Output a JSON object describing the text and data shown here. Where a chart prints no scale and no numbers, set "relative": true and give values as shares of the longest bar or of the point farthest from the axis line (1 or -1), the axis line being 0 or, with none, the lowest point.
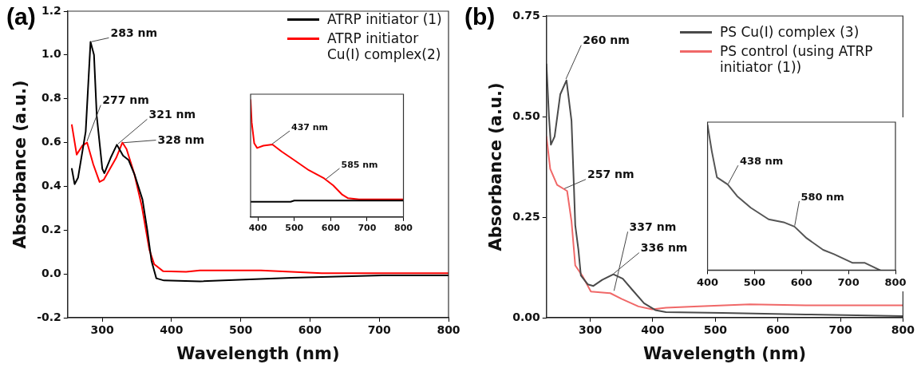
{
  "chart_data": [
    {
      "type": "line",
      "title": "(a)",
      "xlabel": "Wavelength (nm)",
      "ylabel": "Absorbance (a.u.)",
      "xlim": [
        250,
        800
      ],
      "xticks": [
        300,
        400,
        500,
        600,
        700,
        800
      ],
      "ylim": [
        -0.2,
        1.2
      ],
      "yticks": [
        {
          "value": -0.2,
          "label": "-0.2"
        },
        {
          "value": 0,
          "label": "0.0"
        },
        {
          "value": 0.2,
          "label": "0.2"
        },
        {
          "value": 0.4,
          "label": "0.4"
        },
        {
          "value": 0.6,
          "label": "0.6"
        },
        {
          "value": 0.8,
          "label": "0.8"
        },
        {
          "value": 1,
          "label": "1.0"
        },
        {
          "value": 1.2,
          "label": "1.2"
        }
      ],
      "grid": false,
      "legend": "top right",
      "marker": "none",
      "line_style": "solid",
      "series": [
        {
          "name": "ATRP initiator (1)",
          "color": "#000000",
          "x": [
            256,
            260,
            265,
            276,
            283,
            288,
            292,
            300,
            303,
            312,
            321,
            330,
            338,
            347,
            358,
            365,
            371,
            378,
            389,
            441,
            573,
            704,
            800
          ],
          "values": [
            0.48,
            0.41,
            0.44,
            0.65,
            1.06,
            1.0,
            0.72,
            0.48,
            0.46,
            0.53,
            0.59,
            0.54,
            0.52,
            0.45,
            0.34,
            0.2,
            0.06,
            -0.02,
            -0.03,
            -0.034,
            -0.018,
            -0.007,
            -0.007
          ]
        },
        {
          "name": "ATRP initiator Cu(I) complex(2)",
          "color": "#ff0000",
          "x": [
            256,
            263,
            271,
            278,
            287,
            296,
            302,
            320,
            329,
            335,
            346,
            357,
            368,
            375,
            388,
            421,
            441,
            529,
            573,
            617,
            800
          ],
          "values": [
            0.68,
            0.545,
            0.585,
            0.6,
            0.5,
            0.42,
            0.43,
            0.53,
            0.6,
            0.57,
            0.46,
            0.31,
            0.11,
            0.044,
            0.012,
            0.01,
            0.016,
            0.016,
            0.01,
            0.003,
            0.003
          ]
        }
      ],
      "annotations": [
        {
          "text": "283 nm",
          "x": 283,
          "y": 1.06
        },
        {
          "text": "277 nm",
          "x": 277,
          "y": 0.6
        },
        {
          "text": "321 nm",
          "x": 321,
          "y": 0.59
        },
        {
          "text": "328 nm",
          "x": 328,
          "y": 0.6
        }
      ]
    },
    {
      "type": "line",
      "relative": true,
      "xlim": [
        380,
        800
      ],
      "xticks": [
        400,
        500,
        600,
        700,
        800
      ],
      "grid": false,
      "tick_labels": "x",
      "marker": "none",
      "line_style": "solid",
      "series": [
        {
          "color": "#000000",
          "x": [
            380,
            407,
            490,
            500,
            800
          ],
          "values": [
            0.13,
            0.13,
            0.13,
            0.14,
            0.14
          ]
        },
        {
          "color": "#ff0000",
          "x": [
            380,
            383,
            390,
            398,
            415,
            440,
            465,
            498,
            540,
            582,
            607,
            632,
            648,
            678,
            800
          ],
          "values": [
            1.0,
            0.81,
            0.63,
            0.59,
            0.61,
            0.62,
            0.56,
            0.49,
            0.4,
            0.33,
            0.27,
            0.19,
            0.16,
            0.15,
            0.15
          ]
        }
      ],
      "annotations": [
        {
          "text": "437 nm",
          "x": 437,
          "y": 0.62
        },
        {
          "text": "585 nm",
          "x": 585,
          "y": 0.32
        }
      ]
    },
    {
      "type": "line",
      "title": "(b)",
      "xlabel": "Wavelength (nm)",
      "ylabel": "Absorbance (a.u.)",
      "xlim": [
        230,
        800
      ],
      "xticks": [
        300,
        400,
        500,
        600,
        700,
        800
      ],
      "ylim": [
        0,
        0.75
      ],
      "yticks": [
        {
          "value": 0,
          "label": "0.00"
        },
        {
          "value": 0.25,
          "label": "0.25"
        },
        {
          "value": 0.5,
          "label": "0.50"
        },
        {
          "value": 0.75,
          "label": "0.75"
        }
      ],
      "grid": false,
      "legend": "top right",
      "marker": "none",
      "line_style": "solid",
      "series": [
        {
          "name": "PS Cu(I) complex (3)",
          "color": "#4a4a4a",
          "x": [
            230,
            234,
            237,
            243,
            252,
            262,
            270,
            274,
            276,
            281,
            285,
            296,
            305,
            319,
            337,
            352,
            368,
            386,
            404,
            421,
            511,
            645,
            800
          ],
          "values": [
            0.63,
            0.5,
            0.43,
            0.45,
            0.555,
            0.59,
            0.49,
            0.32,
            0.23,
            0.17,
            0.105,
            0.083,
            0.079,
            0.094,
            0.108,
            0.097,
            0.068,
            0.036,
            0.019,
            0.014,
            0.012,
            0.008,
            0.004
          ]
        },
        {
          "name": "PS control (using ATRP initiator (1))",
          "color": "#f06868",
          "x": [
            230,
            236,
            247,
            263,
            270,
            276,
            287,
            301,
            332,
            350,
            377,
            399,
            421,
            466,
            555,
            645,
            800
          ],
          "values": [
            0.45,
            0.37,
            0.33,
            0.315,
            0.24,
            0.13,
            0.105,
            0.065,
            0.061,
            0.047,
            0.028,
            0.021,
            0.025,
            0.028,
            0.033,
            0.031,
            0.031
          ]
        }
      ],
      "annotations": [
        {
          "text": "260 nm",
          "x": 260,
          "y": 0.59
        },
        {
          "text": "257 nm",
          "x": 257,
          "y": 0.32
        },
        {
          "text": "337 nm",
          "x": 337,
          "y": 0.061
        },
        {
          "text": "336 nm",
          "x": 336,
          "y": 0.108
        }
      ]
    },
    {
      "type": "line",
      "relative": true,
      "xlim": [
        400,
        800
      ],
      "xticks": [
        400,
        500,
        600,
        700,
        800
      ],
      "grid": false,
      "tick_labels": "x",
      "marker": "none",
      "line_style": "solid",
      "series": [
        {
          "color": "#555555",
          "x": [
            400,
            409,
            420,
            443,
            463,
            492,
            530,
            562,
            585,
            611,
            646,
            669,
            709,
            735,
            767
          ],
          "values": [
            1.0,
            0.82,
            0.64,
            0.59,
            0.51,
            0.43,
            0.35,
            0.33,
            0.3,
            0.22,
            0.14,
            0.11,
            0.05,
            0.05,
            0.0
          ]
        }
      ],
      "annotations": [
        {
          "text": "438 nm",
          "x": 443,
          "y": 0.59
        },
        {
          "text": "580 nm",
          "x": 585,
          "y": 0.3
        }
      ]
    }
  ]
}
